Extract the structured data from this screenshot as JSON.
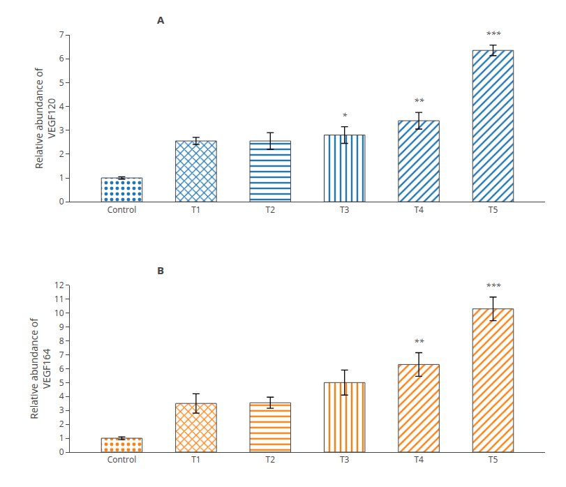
{
  "chart_data": [
    {
      "type": "bar",
      "title": "A",
      "categories": [
        "Control",
        "T1",
        "T2",
        "T3",
        "T4",
        "T5"
      ],
      "values": [
        1.0,
        2.55,
        2.55,
        2.8,
        3.4,
        6.35
      ],
      "errors": [
        0.05,
        0.15,
        0.35,
        0.35,
        0.35,
        0.22
      ],
      "ylabel": "Relative abundance of\nVEGF120",
      "ylim": [
        0,
        7
      ],
      "yticks": [
        0,
        1,
        2,
        3,
        4,
        5,
        6,
        7
      ],
      "annotations": [
        {
          "category": "T3",
          "text": "*"
        },
        {
          "category": "T4",
          "text": "**"
        },
        {
          "category": "T5",
          "text": "***"
        }
      ],
      "grid": false
    },
    {
      "type": "bar",
      "title": "B",
      "categories": [
        "Control",
        "T1",
        "T2",
        "T3",
        "T4",
        "T5"
      ],
      "values": [
        1.0,
        3.5,
        3.55,
        5.0,
        6.3,
        10.3
      ],
      "errors": [
        0.1,
        0.7,
        0.4,
        0.9,
        0.85,
        0.85
      ],
      "ylabel": "Relative abundance of\nVEGF164",
      "ylim": [
        0,
        12
      ],
      "yticks": [
        0,
        1,
        2,
        3,
        4,
        5,
        6,
        7,
        8,
        9,
        10,
        11,
        12
      ],
      "annotations": [
        {
          "category": "T4",
          "text": "**"
        },
        {
          "category": "T5",
          "text": "***"
        }
      ],
      "grid": false
    }
  ]
}
